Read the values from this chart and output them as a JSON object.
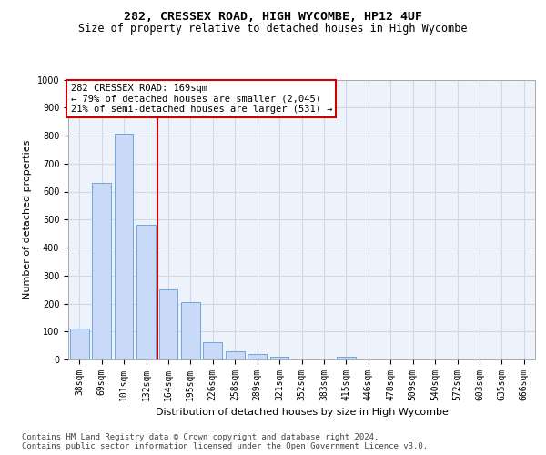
{
  "title1": "282, CRESSEX ROAD, HIGH WYCOMBE, HP12 4UF",
  "title2": "Size of property relative to detached houses in High Wycombe",
  "xlabel": "Distribution of detached houses by size in High Wycombe",
  "ylabel": "Number of detached properties",
  "categories": [
    "38sqm",
    "69sqm",
    "101sqm",
    "132sqm",
    "164sqm",
    "195sqm",
    "226sqm",
    "258sqm",
    "289sqm",
    "321sqm",
    "352sqm",
    "383sqm",
    "415sqm",
    "446sqm",
    "478sqm",
    "509sqm",
    "540sqm",
    "572sqm",
    "603sqm",
    "635sqm",
    "666sqm"
  ],
  "values": [
    110,
    630,
    805,
    480,
    250,
    205,
    63,
    28,
    18,
    10,
    0,
    0,
    10,
    0,
    0,
    0,
    0,
    0,
    0,
    0,
    0
  ],
  "bar_color": "#c9daf8",
  "bar_edge_color": "#6fa8dc",
  "vline_x": 4.0,
  "vline_color": "#cc0000",
  "annotation_text": "282 CRESSEX ROAD: 169sqm\n← 79% of detached houses are smaller (2,045)\n21% of semi-detached houses are larger (531) →",
  "annotation_box_color": "#ffffff",
  "annotation_box_edge": "#cc0000",
  "ylim": [
    0,
    1000
  ],
  "yticks": [
    0,
    100,
    200,
    300,
    400,
    500,
    600,
    700,
    800,
    900,
    1000
  ],
  "grid_color": "#d0d8e8",
  "background_color": "#eef2fa",
  "footer1": "Contains HM Land Registry data © Crown copyright and database right 2024.",
  "footer2": "Contains public sector information licensed under the Open Government Licence v3.0.",
  "title1_fontsize": 9.5,
  "title2_fontsize": 8.5,
  "xlabel_fontsize": 8,
  "ylabel_fontsize": 8,
  "tick_fontsize": 7,
  "annotation_fontsize": 7.5,
  "footer_fontsize": 6.5
}
